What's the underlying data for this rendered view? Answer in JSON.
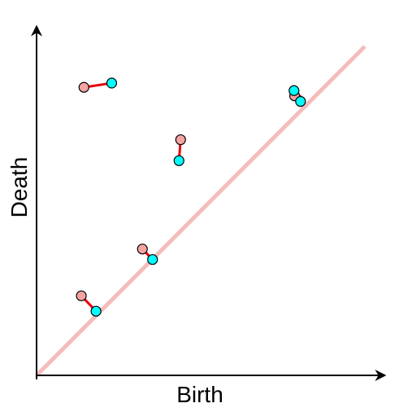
{
  "axes": {
    "xlabel": "Birth",
    "ylabel": "Death"
  },
  "colors": {
    "axis": "#000000",
    "diagonal": "#f5bcbc",
    "link": "#e8000b",
    "point_a_fill": "#f4a3a3",
    "point_b_fill": "#00ffff",
    "point_stroke": "#000000"
  },
  "chart_data": {
    "type": "scatter",
    "xlim": [
      0,
      1
    ],
    "ylim": [
      0,
      1
    ],
    "diagonal": true,
    "grid": false,
    "pairs": [
      {
        "a": [
          0.145,
          0.88
        ],
        "b": [
          0.23,
          0.893
        ]
      },
      {
        "a": [
          0.441,
          0.72
        ],
        "b": [
          0.436,
          0.656
        ]
      },
      {
        "a": [
          0.137,
          0.243
        ],
        "b": [
          0.182,
          0.196
        ]
      },
      {
        "a": [
          0.324,
          0.386
        ],
        "b": [
          0.355,
          0.354
        ]
      },
      {
        "a": [
          0.79,
          0.854
        ],
        "b": [
          0.808,
          0.837
        ]
      }
    ],
    "open_ends": [
      {
        "b": [
          0.788,
          0.87
        ],
        "a": [
          0.813,
          0.847
        ]
      }
    ]
  }
}
